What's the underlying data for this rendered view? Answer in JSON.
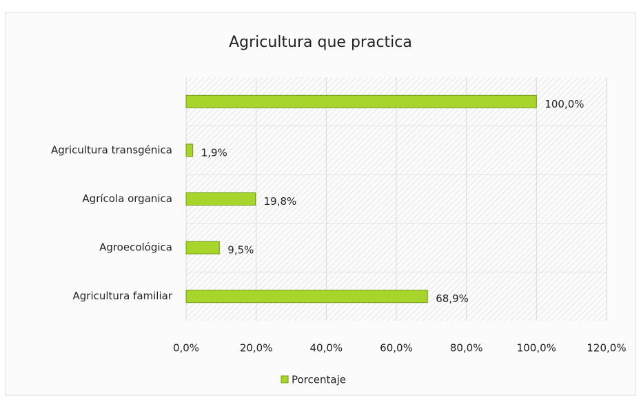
{
  "chart_data": {
    "type": "hbar",
    "title": "Agricultura que practica",
    "categories": [
      null,
      "Agricultura transgénica",
      "Agrícola organica",
      "Agroecológica",
      "Agricultura familiar"
    ],
    "series": [
      {
        "name": "Porcentaje",
        "color": "#a8d52c",
        "values": [
          100.0,
          1.9,
          19.8,
          9.5,
          68.9
        ],
        "value_labels": [
          "100,0%",
          "1,9%",
          "19,8%",
          "9,5%",
          "68,9%"
        ]
      }
    ],
    "xlim": [
      0,
      120
    ],
    "xticks": [
      {
        "value": 0,
        "label": "0,0%"
      },
      {
        "value": 20,
        "label": "20,0%"
      },
      {
        "value": 40,
        "label": "40,0%"
      },
      {
        "value": 60,
        "label": "60,0%"
      },
      {
        "value": 80,
        "label": "80,0%"
      },
      {
        "value": 100,
        "label": "100,0%"
      },
      {
        "value": 120,
        "label": "120,0%"
      }
    ],
    "grid": true,
    "legend": "bottom"
  }
}
